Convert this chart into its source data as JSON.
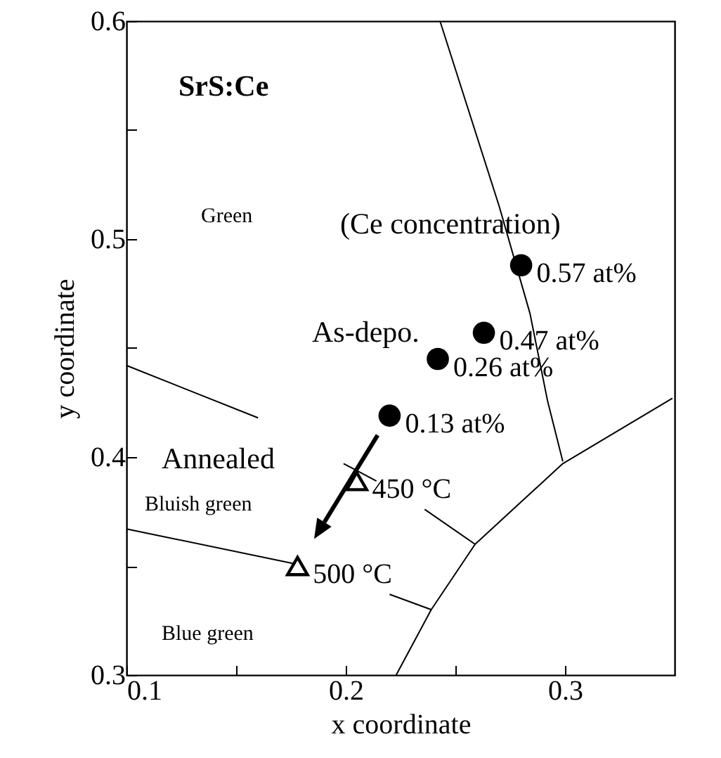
{
  "chart_data": {
    "type": "scatter",
    "xlabel": "x coordinate",
    "ylabel": "y coordinate",
    "annotations": [
      "SrS:Ce",
      "Green",
      "Bluish green",
      "Blue green",
      "(Ce concentration)",
      {
        "text": "0.57 at%",
        "x": 0.28,
        "y": 0.488
      },
      {
        "text": "0.47 at%",
        "x": 0.263,
        "y": 0.457
      },
      {
        "text": "0.26 at%",
        "x": 0.242,
        "y": 0.445
      },
      {
        "text": "0.13 at%",
        "x": 0.22,
        "y": 0.419
      },
      {
        "text": "450 °C",
        "x": 0.205,
        "y": 0.389
      },
      {
        "text": "500 °C",
        "x": 0.178,
        "y": 0.35
      }
    ],
    "xlim": [
      0.1,
      0.35
    ],
    "ylim": [
      0.3,
      0.6
    ],
    "xticks": [
      0.1,
      {
        "value": 0.15,
        "label": null
      },
      0.2,
      {
        "value": 0.25,
        "label": null
      },
      0.3
    ],
    "yticks": [
      0.3,
      {
        "value": 0.35,
        "label": null
      },
      0.4,
      {
        "value": 0.45,
        "label": null
      },
      0.5,
      {
        "value": 0.55,
        "label": null
      },
      0.6
    ],
    "grid": false,
    "series": [
      {
        "name": "As-depo.",
        "marker": "circle",
        "color": "#000000",
        "x": [
          0.28,
          0.263,
          0.242,
          0.22
        ],
        "values": [
          0.488,
          0.457,
          0.445,
          0.419
        ]
      },
      {
        "name": "Annealed",
        "marker": "triangle",
        "color": "#000000",
        "x": [
          0.205,
          0.178
        ],
        "values": [
          0.389,
          0.35
        ]
      },
      {
        "type": "line",
        "marker": "none",
        "color": "#000000",
        "x": [
          0.243,
          0.27,
          0.284,
          0.292,
          0.299
        ],
        "values": [
          0.6,
          0.515,
          0.466,
          0.426,
          0.398
        ]
      },
      {
        "type": "line",
        "marker": "none",
        "color": "#000000",
        "x": [
          0.223,
          0.239,
          0.259,
          0.299,
          0.349
        ],
        "values": [
          0.3,
          0.33,
          0.36,
          0.397,
          0.427
        ]
      },
      {
        "type": "line",
        "marker": "none",
        "color": "#000000",
        "x": [
          0.1,
          0.16
        ],
        "values": [
          0.442,
          0.418
        ]
      },
      {
        "type": "line",
        "marker": "none",
        "color": "#000000",
        "x": [
          0.199,
          0.214
        ],
        "values": [
          0.397,
          0.389
        ]
      },
      {
        "type": "line",
        "marker": "none",
        "color": "#000000",
        "x": [
          0.236,
          0.259
        ],
        "values": [
          0.376,
          0.36
        ]
      },
      {
        "type": "line",
        "marker": "none",
        "color": "#000000",
        "x": [
          0.1,
          0.177
        ],
        "values": [
          0.367,
          0.351
        ]
      },
      {
        "type": "line",
        "marker": "none",
        "color": "#000000",
        "x": [
          0.22,
          0.239
        ],
        "values": [
          0.337,
          0.33
        ]
      }
    ]
  }
}
